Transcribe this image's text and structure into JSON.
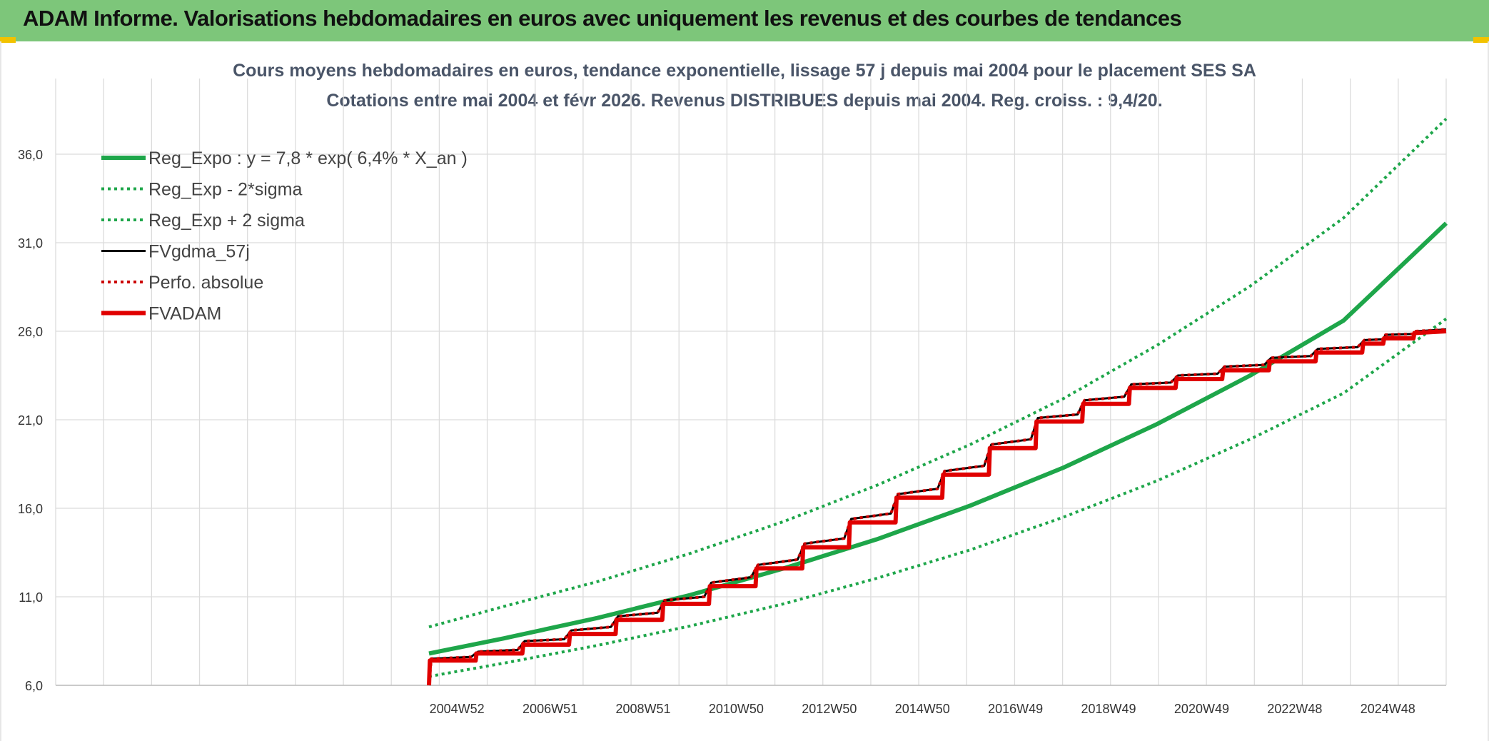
{
  "header": {
    "title": "ADAM Informe. Valorisations hebdomadaires en euros avec uniquement les revenus et des courbes de tendances"
  },
  "chart_data": {
    "type": "line",
    "title": "Cours moyens hebdomadaires en euros, tendance exponentielle, lissage 57 j depuis mai 2004 pour le placement SES SA",
    "subtitle": "Cotations entre mai 2004 et févr 2026. Revenus DISTRIBUES depuis mai 2004. Reg. croiss. : 9,4/20.",
    "xlabel": "",
    "ylabel": "",
    "x_ticks": [
      "2004W52",
      "2006W51",
      "2008W51",
      "2010W50",
      "2012W50",
      "2014W50",
      "2016W49",
      "2018W49",
      "2020W49",
      "2022W48",
      "2024W48"
    ],
    "x_range": [
      1996.4,
      2026.2
    ],
    "y_ticks": [
      "6,0",
      "11,0",
      "16,0",
      "21,0",
      "26,0",
      "31,0",
      "36,0"
    ],
    "ylim": [
      6,
      36
    ],
    "grid": true,
    "legend_position": "top-left",
    "series": [
      {
        "name": "Reg_Expo : y = 7,8 * exp( 6,4% *  X_an )",
        "color": "#1ea64a",
        "style": "solid-thick",
        "points": [
          [
            2004.4,
            7.8
          ],
          [
            2006,
            8.65
          ],
          [
            2008,
            9.8
          ],
          [
            2010,
            11.1
          ],
          [
            2012,
            12.6
          ],
          [
            2014,
            14.25
          ],
          [
            2016,
            16.15
          ],
          [
            2018,
            18.3
          ],
          [
            2020,
            20.75
          ],
          [
            2022,
            23.5
          ],
          [
            2024,
            26.6
          ],
          [
            2026.2,
            32.1
          ]
        ]
      },
      {
        "name": "Reg_Exp - 2*sigma",
        "color": "#1ea64a",
        "style": "dotted",
        "points": [
          [
            2004.4,
            6.5
          ],
          [
            2006,
            7.25
          ],
          [
            2008,
            8.25
          ],
          [
            2010,
            9.35
          ],
          [
            2012,
            10.6
          ],
          [
            2014,
            12.05
          ],
          [
            2016,
            13.65
          ],
          [
            2018,
            15.5
          ],
          [
            2020,
            17.55
          ],
          [
            2022,
            19.9
          ],
          [
            2024,
            22.5
          ],
          [
            2026.2,
            26.7
          ]
        ]
      },
      {
        "name": "Reg_Exp + 2 sigma",
        "color": "#1ea64a",
        "style": "dotted",
        "points": [
          [
            2004.4,
            9.3
          ],
          [
            2006,
            10.45
          ],
          [
            2008,
            11.85
          ],
          [
            2010,
            13.45
          ],
          [
            2012,
            15.25
          ],
          [
            2014,
            17.3
          ],
          [
            2016,
            19.6
          ],
          [
            2018,
            22.2
          ],
          [
            2020,
            25.2
          ],
          [
            2022,
            28.55
          ],
          [
            2024,
            32.4
          ],
          [
            2026.2,
            38.0
          ]
        ]
      },
      {
        "name": "FVgdma_57j",
        "color": "#000000",
        "style": "solid",
        "points": [
          [
            2004.4,
            6.0
          ],
          [
            2004.45,
            7.5
          ],
          [
            2005.3,
            7.6
          ],
          [
            2005.45,
            7.9
          ],
          [
            2006.3,
            8.0
          ],
          [
            2006.45,
            8.5
          ],
          [
            2007.3,
            8.6
          ],
          [
            2007.45,
            9.1
          ],
          [
            2008.3,
            9.3
          ],
          [
            2008.45,
            9.9
          ],
          [
            2009.3,
            10.1
          ],
          [
            2009.45,
            10.8
          ],
          [
            2010.3,
            11.0
          ],
          [
            2010.45,
            11.8
          ],
          [
            2011.3,
            12.1
          ],
          [
            2011.45,
            12.8
          ],
          [
            2012.3,
            13.1
          ],
          [
            2012.45,
            14.0
          ],
          [
            2013.3,
            14.3
          ],
          [
            2013.45,
            15.4
          ],
          [
            2014.3,
            15.7
          ],
          [
            2014.45,
            16.8
          ],
          [
            2015.3,
            17.1
          ],
          [
            2015.45,
            18.1
          ],
          [
            2016.3,
            18.4
          ],
          [
            2016.45,
            19.6
          ],
          [
            2017.3,
            19.9
          ],
          [
            2017.45,
            21.1
          ],
          [
            2018.3,
            21.3
          ],
          [
            2018.45,
            22.1
          ],
          [
            2019.3,
            22.3
          ],
          [
            2019.45,
            23.0
          ],
          [
            2020.3,
            23.1
          ],
          [
            2020.45,
            23.5
          ],
          [
            2021.3,
            23.6
          ],
          [
            2021.45,
            24.0
          ],
          [
            2022.3,
            24.1
          ],
          [
            2022.45,
            24.5
          ],
          [
            2023.3,
            24.6
          ],
          [
            2023.45,
            25.0
          ],
          [
            2024.3,
            25.1
          ],
          [
            2024.45,
            25.5
          ],
          [
            2024.85,
            25.55
          ],
          [
            2024.9,
            25.8
          ],
          [
            2025.5,
            25.85
          ],
          [
            2025.55,
            26.0
          ],
          [
            2026.2,
            26.1
          ]
        ]
      },
      {
        "name": "Perfo. absolue",
        "color": "#cc0000",
        "style": "dotted",
        "points": [
          [
            2004.4,
            6.0
          ],
          [
            2004.45,
            7.5
          ],
          [
            2005.3,
            7.6
          ],
          [
            2005.45,
            7.9
          ],
          [
            2006.3,
            8.0
          ],
          [
            2006.45,
            8.5
          ],
          [
            2007.3,
            8.6
          ],
          [
            2007.45,
            9.1
          ],
          [
            2008.3,
            9.3
          ],
          [
            2008.45,
            9.9
          ],
          [
            2009.3,
            10.1
          ],
          [
            2009.45,
            10.8
          ],
          [
            2010.3,
            11.0
          ],
          [
            2010.45,
            11.8
          ],
          [
            2011.3,
            12.1
          ],
          [
            2011.45,
            12.8
          ],
          [
            2012.3,
            13.1
          ],
          [
            2012.45,
            14.0
          ],
          [
            2013.3,
            14.3
          ],
          [
            2013.45,
            15.4
          ],
          [
            2014.3,
            15.7
          ],
          [
            2014.45,
            16.8
          ],
          [
            2015.3,
            17.1
          ],
          [
            2015.45,
            18.1
          ],
          [
            2016.3,
            18.4
          ],
          [
            2016.45,
            19.6
          ],
          [
            2017.3,
            19.9
          ],
          [
            2017.45,
            21.1
          ],
          [
            2018.3,
            21.3
          ],
          [
            2018.45,
            22.1
          ],
          [
            2019.3,
            22.3
          ],
          [
            2019.45,
            23.0
          ],
          [
            2020.3,
            23.1
          ],
          [
            2020.45,
            23.5
          ],
          [
            2021.3,
            23.6
          ],
          [
            2021.45,
            24.0
          ],
          [
            2022.3,
            24.1
          ],
          [
            2022.45,
            24.5
          ],
          [
            2023.3,
            24.6
          ],
          [
            2023.45,
            25.0
          ],
          [
            2024.3,
            25.1
          ],
          [
            2024.45,
            25.5
          ],
          [
            2024.85,
            25.55
          ],
          [
            2024.9,
            25.8
          ],
          [
            2025.5,
            25.85
          ],
          [
            2025.55,
            26.0
          ],
          [
            2026.2,
            26.1
          ]
        ]
      },
      {
        "name": "FVADAM",
        "color": "#e00000",
        "style": "solid-thick",
        "points": [
          [
            2004.4,
            6.0
          ],
          [
            2004.42,
            7.4
          ],
          [
            2005.4,
            7.4
          ],
          [
            2005.42,
            7.8
          ],
          [
            2006.4,
            7.8
          ],
          [
            2006.42,
            8.3
          ],
          [
            2007.4,
            8.3
          ],
          [
            2007.42,
            8.9
          ],
          [
            2008.4,
            8.9
          ],
          [
            2008.42,
            9.7
          ],
          [
            2009.4,
            9.7
          ],
          [
            2009.42,
            10.6
          ],
          [
            2010.4,
            10.6
          ],
          [
            2010.42,
            11.6
          ],
          [
            2011.4,
            11.6
          ],
          [
            2011.42,
            12.6
          ],
          [
            2012.4,
            12.6
          ],
          [
            2012.42,
            13.8
          ],
          [
            2013.4,
            13.8
          ],
          [
            2013.42,
            15.2
          ],
          [
            2014.4,
            15.2
          ],
          [
            2014.42,
            16.6
          ],
          [
            2015.4,
            16.6
          ],
          [
            2015.42,
            17.9
          ],
          [
            2016.4,
            17.9
          ],
          [
            2016.42,
            19.4
          ],
          [
            2017.4,
            19.4
          ],
          [
            2017.42,
            20.9
          ],
          [
            2018.4,
            20.9
          ],
          [
            2018.42,
            21.9
          ],
          [
            2019.4,
            21.9
          ],
          [
            2019.42,
            22.8
          ],
          [
            2020.4,
            22.8
          ],
          [
            2020.42,
            23.3
          ],
          [
            2021.4,
            23.3
          ],
          [
            2021.42,
            23.8
          ],
          [
            2022.4,
            23.8
          ],
          [
            2022.42,
            24.3
          ],
          [
            2023.4,
            24.3
          ],
          [
            2023.42,
            24.8
          ],
          [
            2024.4,
            24.8
          ],
          [
            2024.42,
            25.3
          ],
          [
            2024.85,
            25.3
          ],
          [
            2024.87,
            25.6
          ],
          [
            2025.5,
            25.6
          ],
          [
            2025.52,
            25.9
          ],
          [
            2026.2,
            26.0
          ]
        ]
      }
    ]
  }
}
